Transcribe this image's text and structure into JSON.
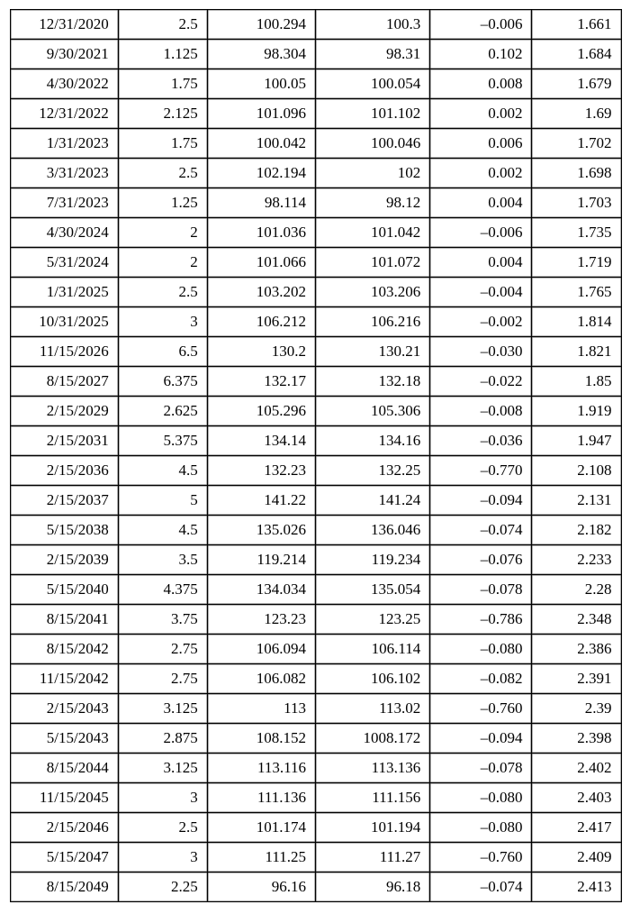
{
  "table": {
    "type": "table",
    "background_color": "#ffffff",
    "border_color": "#000000",
    "text_color": "#000000",
    "font_family": "Times New Roman",
    "font_size_pt": 12,
    "column_count": 6,
    "column_widths_pct": [
      17,
      14,
      17,
      18,
      16,
      14
    ],
    "column_alignments": [
      "right",
      "right",
      "right",
      "right",
      "right",
      "right"
    ],
    "rows": [
      [
        "12/31/2020",
        "2.5",
        "100.294",
        "100.3",
        "–0.006",
        "1.661"
      ],
      [
        "9/30/2021",
        "1.125",
        "98.304",
        "98.31",
        "0.102",
        "1.684"
      ],
      [
        "4/30/2022",
        "1.75",
        "100.05",
        "100.054",
        "0.008",
        "1.679"
      ],
      [
        "12/31/2022",
        "2.125",
        "101.096",
        "101.102",
        "0.002",
        "1.69"
      ],
      [
        "1/31/2023",
        "1.75",
        "100.042",
        "100.046",
        "0.006",
        "1.702"
      ],
      [
        "3/31/2023",
        "2.5",
        "102.194",
        "102",
        "0.002",
        "1.698"
      ],
      [
        "7/31/2023",
        "1.25",
        "98.114",
        "98.12",
        "0.004",
        "1.703"
      ],
      [
        "4/30/2024",
        "2",
        "101.036",
        "101.042",
        "–0.006",
        "1.735"
      ],
      [
        "5/31/2024",
        "2",
        "101.066",
        "101.072",
        "0.004",
        "1.719"
      ],
      [
        "1/31/2025",
        "2.5",
        "103.202",
        "103.206",
        "–0.004",
        "1.765"
      ],
      [
        "10/31/2025",
        "3",
        "106.212",
        "106.216",
        "–0.002",
        "1.814"
      ],
      [
        "11/15/2026",
        "6.5",
        "130.2",
        "130.21",
        "–0.030",
        "1.821"
      ],
      [
        "8/15/2027",
        "6.375",
        "132.17",
        "132.18",
        "–0.022",
        "1.85"
      ],
      [
        "2/15/2029",
        "2.625",
        "105.296",
        "105.306",
        "–0.008",
        "1.919"
      ],
      [
        "2/15/2031",
        "5.375",
        "134.14",
        "134.16",
        "–0.036",
        "1.947"
      ],
      [
        "2/15/2036",
        "4.5",
        "132.23",
        "132.25",
        "–0.770",
        "2.108"
      ],
      [
        "2/15/2037",
        "5",
        "141.22",
        "141.24",
        "–0.094",
        "2.131"
      ],
      [
        "5/15/2038",
        "4.5",
        "135.026",
        "136.046",
        "–0.074",
        "2.182"
      ],
      [
        "2/15/2039",
        "3.5",
        "119.214",
        "119.234",
        "–0.076",
        "2.233"
      ],
      [
        "5/15/2040",
        "4.375",
        "134.034",
        "135.054",
        "–0.078",
        "2.28"
      ],
      [
        "8/15/2041",
        "3.75",
        "123.23",
        "123.25",
        "–0.786",
        "2.348"
      ],
      [
        "8/15/2042",
        "2.75",
        "106.094",
        "106.114",
        "–0.080",
        "2.386"
      ],
      [
        "11/15/2042",
        "2.75",
        "106.082",
        "106.102",
        "–0.082",
        "2.391"
      ],
      [
        "2/15/2043",
        "3.125",
        "113",
        "113.02",
        "–0.760",
        "2.39"
      ],
      [
        "5/15/2043",
        "2.875",
        "108.152",
        "1008.172",
        "–0.094",
        "2.398"
      ],
      [
        "8/15/2044",
        "3.125",
        "113.116",
        "113.136",
        "–0.078",
        "2.402"
      ],
      [
        "11/15/2045",
        "3",
        "111.136",
        "111.156",
        "–0.080",
        "2.403"
      ],
      [
        "2/15/2046",
        "2.5",
        "101.174",
        "101.194",
        "–0.080",
        "2.417"
      ],
      [
        "5/15/2047",
        "3",
        "111.25",
        "111.27",
        "–0.760",
        "2.409"
      ],
      [
        "8/15/2049",
        "2.25",
        "96.16",
        "96.18",
        "–0.074",
        "2.413"
      ]
    ]
  }
}
